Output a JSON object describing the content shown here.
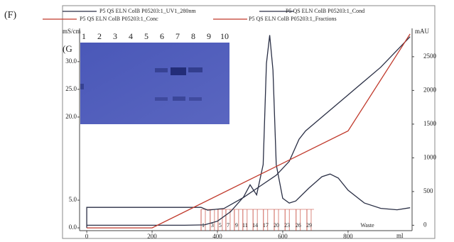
{
  "panel_label": "(F)",
  "gel": {
    "panel_label": "(G",
    "lanes": [
      "1",
      "2",
      "3",
      "4",
      "5",
      "6",
      "7",
      "8",
      "9",
      "10"
    ]
  },
  "chart_data": {
    "type": "line",
    "y_label": "mS/cm",
    "y2_label": "mAU",
    "x_label": "ml",
    "xlim": [
      -22,
      996
    ],
    "ylim": [
      -0.5,
      36
    ],
    "y2lim": [
      -80,
      2920
    ],
    "xticks": [
      0,
      200,
      400,
      600,
      800
    ],
    "yticks": [
      {
        "value": 0,
        "label": "0.0"
      },
      {
        "value": 5,
        "label": "5.0"
      },
      {
        "value": 20,
        "label": "20.0"
      },
      {
        "value": 25,
        "label": "25.0"
      },
      {
        "value": 30,
        "label": "30.0"
      }
    ],
    "y2ticks": [
      0,
      500,
      1000,
      1500,
      2000,
      2500
    ],
    "series": [
      {
        "name": "P5 QS ELN ColB P05203:1_UV1_280nm",
        "color": "#2a2f45",
        "axis": "y2",
        "x": [
          0,
          100,
          200,
          300,
          360,
          400,
          440,
          480,
          500,
          520,
          540,
          550,
          560,
          570,
          580,
          600,
          620,
          640,
          680,
          720,
          745,
          770,
          800,
          850,
          900,
          950,
          990
        ],
        "values": [
          0,
          0,
          0,
          0,
          5,
          60,
          200,
          420,
          600,
          450,
          900,
          2400,
          2820,
          2300,
          900,
          400,
          330,
          360,
          550,
          720,
          760,
          700,
          520,
          330,
          250,
          230,
          260
        ]
      },
      {
        "name": "P5 QS ELN ColB P05203:1_Cond",
        "color": "#2a2f45",
        "x": [
          0,
          0,
          350,
          370,
          420,
          480,
          530,
          580,
          620,
          650,
          670,
          700,
          800,
          900,
          990
        ],
        "values": [
          0,
          3.7,
          3.7,
          3.2,
          3.5,
          5.5,
          7.5,
          9.5,
          12,
          16,
          17.5,
          19,
          24,
          29,
          34.5
        ]
      },
      {
        "name": "P5 QS ELN ColB P05203:1_Conc",
        "color": "#c0392b",
        "x": [
          0,
          200,
          800,
          990
        ],
        "values": [
          0,
          0,
          17.5,
          35
        ]
      }
    ],
    "fractions": {
      "name": "P5 QS ELN ColB P05203:1_Fractions",
      "color": "#c0392b",
      "x": [
        350,
        378,
        402,
        426,
        452,
        478,
        509,
        541,
        574,
        607,
        641,
        674
      ],
      "labels": [
        "1",
        "3",
        "5",
        "7",
        "9",
        "11",
        "14",
        "17",
        "20",
        "23",
        "26",
        "29"
      ],
      "waste_x": 859,
      "waste_label": "Waste"
    }
  }
}
